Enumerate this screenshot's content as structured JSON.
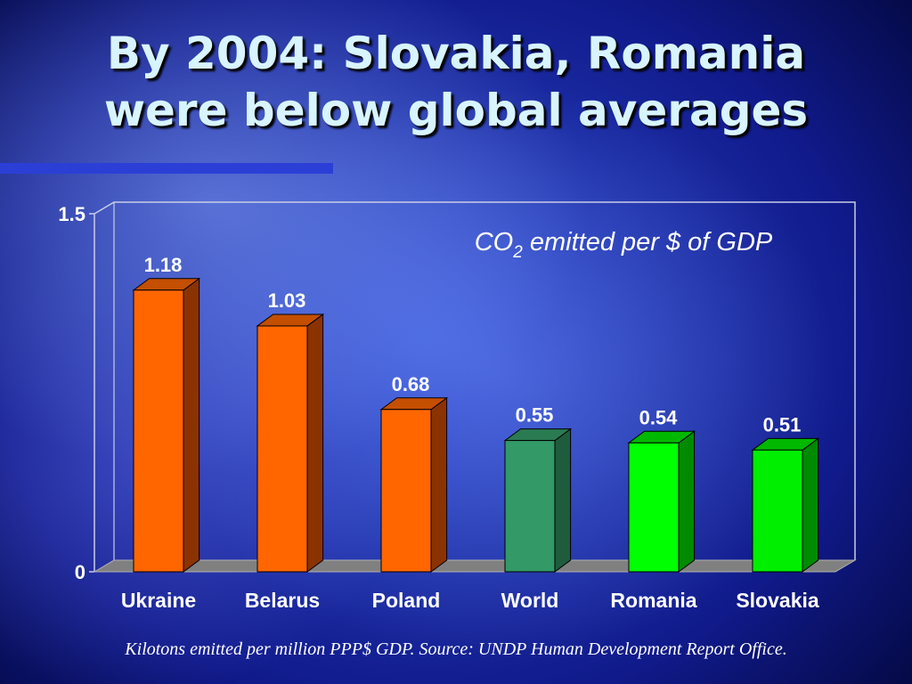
{
  "slide": {
    "title_line1": "By 2004: Slovakia, Romania",
    "title_line2": "were below global averages",
    "footnote": "Kilotons emitted per million PPP$ GDP. Source: UNDP Human Development Report Office."
  },
  "chart_data": {
    "type": "bar",
    "title_prefix": "CO",
    "title_subscript": "2",
    "title_suffix": " emitted per $ of GDP",
    "categories": [
      "Ukraine",
      "Belarus",
      "Poland",
      "World",
      "Romania",
      "Slovakia"
    ],
    "values": [
      1.18,
      1.03,
      0.68,
      0.55,
      0.54,
      0.51
    ],
    "value_labels": [
      "1.18",
      "1.03",
      "0.68",
      "0.55",
      "0.54",
      "0.51"
    ],
    "ylim": [
      0,
      1.5
    ],
    "y_tick_labels": [
      "0",
      "1.5"
    ],
    "grid": false,
    "colors": {
      "Ukraine": "#ff6600",
      "Belarus": "#ff6600",
      "Poland": "#ff6600",
      "World": "#339966",
      "Romania": "#00ff00",
      "Slovakia": "#00ee00"
    },
    "side_colors": {
      "Ukraine": "#8b3300",
      "Belarus": "#8b3300",
      "Poland": "#8b3300",
      "World": "#1f5c3d",
      "Romania": "#008a00",
      "Slovakia": "#008a00"
    },
    "top_colors": {
      "Ukraine": "#c44f00",
      "Belarus": "#c44f00",
      "Poland": "#c44f00",
      "World": "#2a7a52",
      "Romania": "#00b800",
      "Slovakia": "#00b800"
    }
  }
}
